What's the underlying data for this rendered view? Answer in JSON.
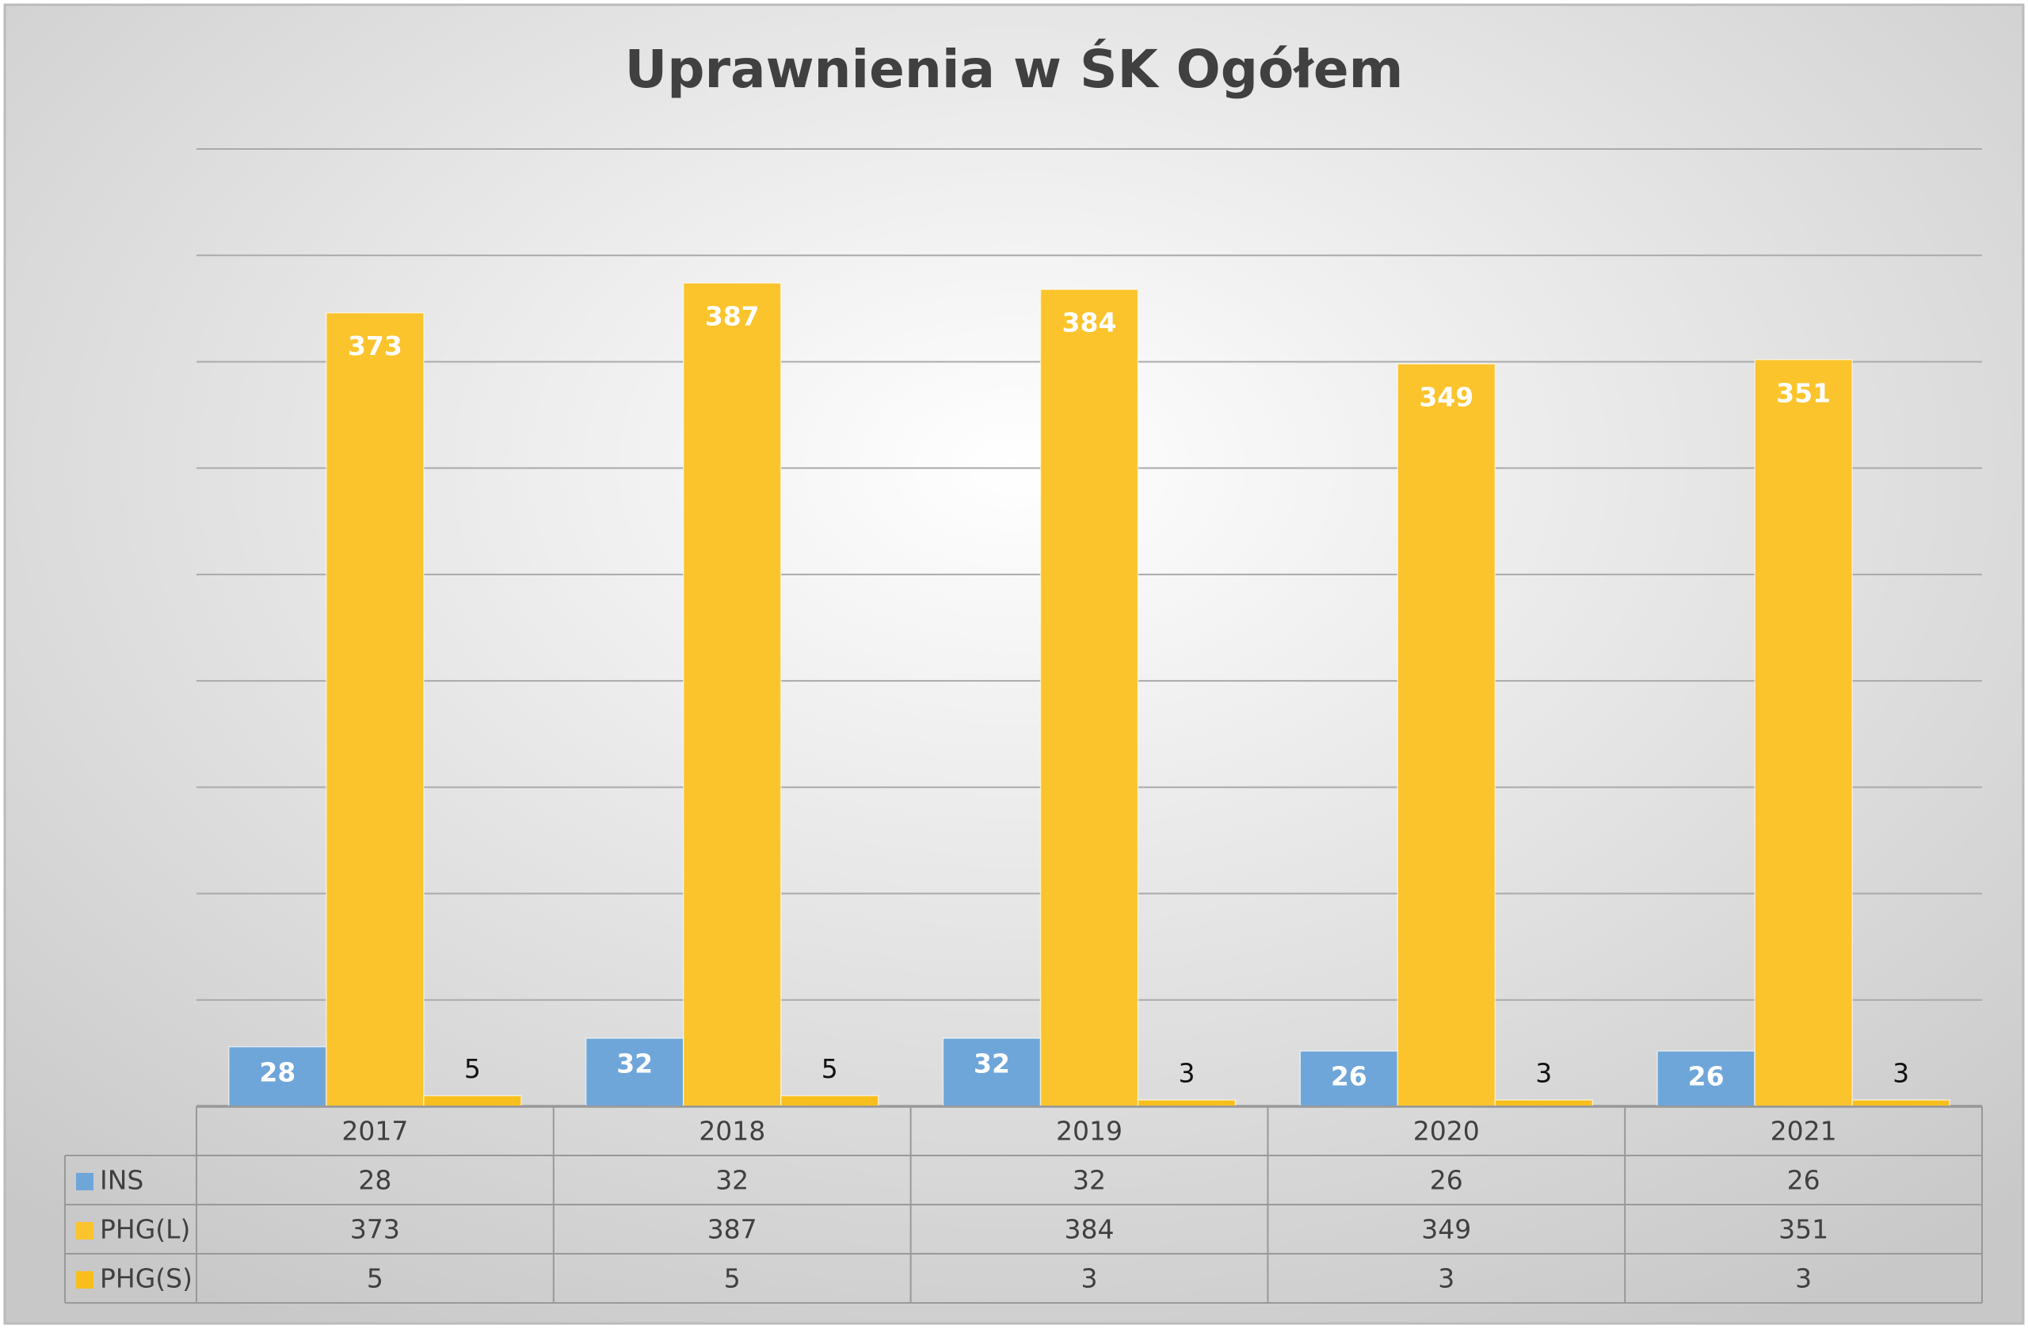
{
  "chart_data": {
    "type": "bar",
    "title": "Uprawnienia w ŚK Ogółem",
    "categories": [
      "2017",
      "2018",
      "2019",
      "2020",
      "2021"
    ],
    "series": [
      {
        "name": "INS",
        "color": "#6fa6d9",
        "values": [
          28,
          32,
          32,
          26,
          26
        ]
      },
      {
        "name": "PHG(L)",
        "color": "#fbc42c",
        "values": [
          373,
          387,
          384,
          349,
          351
        ]
      },
      {
        "name": "PHG(S)",
        "color": "#f8bf1c",
        "values": [
          5,
          5,
          3,
          3,
          3
        ]
      }
    ],
    "ylim": [
      0,
      450
    ],
    "yticks": [
      0,
      50,
      100,
      150,
      200,
      250,
      300,
      350,
      400,
      450
    ],
    "grid": true,
    "data_table": true
  }
}
